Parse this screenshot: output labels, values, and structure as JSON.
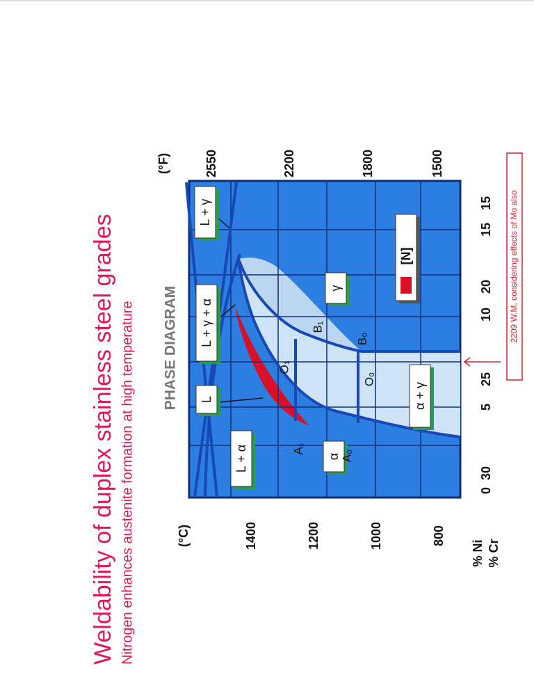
{
  "title": "Weldability of duplex stainless steel grades",
  "subtitle": "Nitrogen enhances austenite formation at high temperature",
  "diagram": {
    "title": "PHASE DIAGRAM",
    "left_axis": {
      "unit": "(°C)",
      "ticks": [
        "1400",
        "1200",
        "1000",
        "800"
      ]
    },
    "right_axis": {
      "unit": "(°F)",
      "ticks": [
        "2550",
        "2200",
        "1800",
        "1500"
      ]
    },
    "bottom_axis": {
      "ni_label": "% Ni",
      "cr_label": "% Cr",
      "ni_ticks": [
        "0",
        "5",
        "10",
        "15"
      ],
      "cr_ticks": [
        "30",
        "25",
        "20",
        "15"
      ]
    },
    "regions": [
      "L + γ",
      "L + γ + α",
      "L",
      "L + α",
      "α",
      "γ",
      "α + γ"
    ],
    "points": [
      "A₁",
      "O₁",
      "B₁",
      "A₀",
      "O₀",
      "B₀"
    ],
    "legend": "[N]",
    "note": "2209 W.M, considering effects of Mo also"
  }
}
